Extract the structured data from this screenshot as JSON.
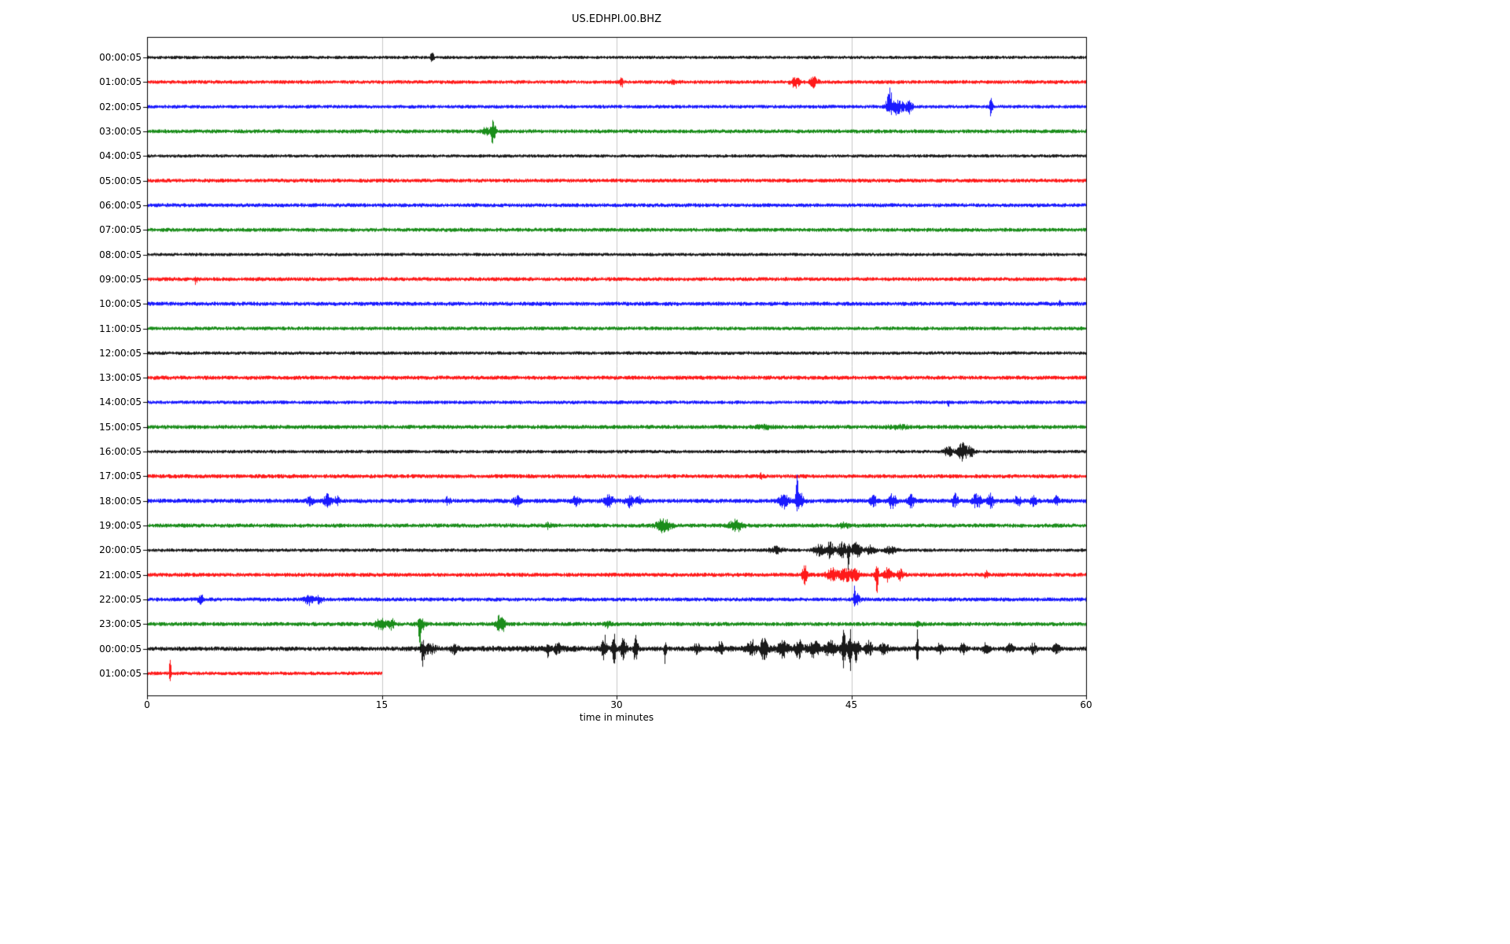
{
  "chart_data": {
    "type": "line",
    "title": "US.EDHPI.00.BHZ",
    "xlabel": "time in minutes",
    "x_ticks": [
      "0",
      "15",
      "30",
      "45",
      "60"
    ],
    "x_range_minutes": [
      0,
      60
    ],
    "grid": "vertical",
    "grid_minutes": [
      15,
      30,
      45
    ],
    "trace_colors_cycle": [
      "#000000",
      "#ff0000",
      "#0000ff",
      "#008000"
    ],
    "rows": [
      {
        "label": "00:00:05",
        "color": "#000000",
        "noise": 2.2,
        "events": [
          {
            "t": 18.2,
            "a": 5,
            "d": 0.12
          }
        ]
      },
      {
        "label": "01:00:05",
        "color": "#ff0000",
        "noise": 2.5,
        "events": [
          {
            "t": 30.3,
            "a": 6,
            "d": 0.1
          },
          {
            "t": 33.6,
            "a": 4,
            "d": 0.1
          },
          {
            "t": 41.4,
            "a": 6,
            "d": 0.3
          },
          {
            "t": 42.6,
            "a": 6,
            "d": 0.25
          }
        ]
      },
      {
        "label": "02:00:05",
        "color": "#0000ff",
        "noise": 2.4,
        "events": [
          {
            "t": 47.4,
            "a": 20,
            "d": 0.18,
            "skew": "up"
          },
          {
            "t": 47.9,
            "a": 9,
            "d": 0.45
          },
          {
            "t": 48.7,
            "a": 8,
            "d": 0.2
          },
          {
            "t": 53.9,
            "a": 13,
            "d": 0.1
          }
        ]
      },
      {
        "label": "03:00:05",
        "color": "#008000",
        "noise": 2.6,
        "events": [
          {
            "t": 21.7,
            "a": 4,
            "d": 0.35
          },
          {
            "t": 22.1,
            "a": 16,
            "d": 0.13
          }
        ]
      },
      {
        "label": "04:00:05",
        "color": "#000000",
        "noise": 2.2,
        "events": []
      },
      {
        "label": "05:00:05",
        "color": "#ff0000",
        "noise": 2.6,
        "events": []
      },
      {
        "label": "06:00:05",
        "color": "#0000ff",
        "noise": 2.6,
        "events": []
      },
      {
        "label": "07:00:05",
        "color": "#008000",
        "noise": 2.6,
        "events": []
      },
      {
        "label": "08:00:05",
        "color": "#000000",
        "noise": 2.2,
        "events": []
      },
      {
        "label": "09:00:05",
        "color": "#ff0000",
        "noise": 2.6,
        "events": [
          {
            "t": 3.1,
            "a": 6,
            "d": 0.07,
            "skew": "down"
          }
        ]
      },
      {
        "label": "10:00:05",
        "color": "#0000ff",
        "noise": 2.7,
        "events": [
          {
            "t": 58.3,
            "a": 3,
            "d": 0.1
          }
        ]
      },
      {
        "label": "11:00:05",
        "color": "#008000",
        "noise": 2.5,
        "events": []
      },
      {
        "label": "12:00:05",
        "color": "#000000",
        "noise": 2.3,
        "events": []
      },
      {
        "label": "13:00:05",
        "color": "#ff0000",
        "noise": 2.7,
        "events": []
      },
      {
        "label": "14:00:05",
        "color": "#0000ff",
        "noise": 2.4,
        "events": [
          {
            "t": 51.2,
            "a": 5,
            "d": 0.07,
            "skew": "down"
          }
        ]
      },
      {
        "label": "15:00:05",
        "color": "#008000",
        "noise": 2.7,
        "events": [
          {
            "t": 39.5,
            "a": 2,
            "d": 0.5
          },
          {
            "t": 48.0,
            "a": 2,
            "d": 0.6
          }
        ]
      },
      {
        "label": "16:00:05",
        "color": "#000000",
        "noise": 2.3,
        "events": [
          {
            "t": 51.2,
            "a": 5,
            "d": 0.3
          },
          {
            "t": 52.1,
            "a": 11,
            "d": 0.28
          },
          {
            "t": 52.6,
            "a": 7,
            "d": 0.2
          }
        ]
      },
      {
        "label": "17:00:05",
        "color": "#ff0000",
        "noise": 2.7,
        "events": [
          {
            "t": 39.2,
            "a": 3,
            "d": 0.1
          }
        ]
      },
      {
        "label": "18:00:05",
        "color": "#0000ff",
        "noise": 2.9,
        "events": [
          {
            "t": 10.4,
            "a": 5,
            "d": 0.2
          },
          {
            "t": 11.5,
            "a": 7,
            "d": 0.25
          },
          {
            "t": 12.1,
            "a": 5,
            "d": 0.15
          },
          {
            "t": 19.2,
            "a": 4,
            "d": 0.15
          },
          {
            "t": 23.6,
            "a": 6,
            "d": 0.2
          },
          {
            "t": 27.4,
            "a": 5,
            "d": 0.25
          },
          {
            "t": 29.5,
            "a": 7,
            "d": 0.3
          },
          {
            "t": 30.8,
            "a": 7,
            "d": 0.25
          },
          {
            "t": 31.4,
            "a": 6,
            "d": 0.15
          },
          {
            "t": 40.7,
            "a": 8,
            "d": 0.3
          },
          {
            "t": 41.5,
            "a": 40,
            "d": 0.07,
            "skew": "up"
          },
          {
            "t": 41.7,
            "a": 9,
            "d": 0.25
          },
          {
            "t": 46.4,
            "a": 7,
            "d": 0.2
          },
          {
            "t": 47.6,
            "a": 9,
            "d": 0.25
          },
          {
            "t": 48.8,
            "a": 8,
            "d": 0.2
          },
          {
            "t": 51.6,
            "a": 8,
            "d": 0.2
          },
          {
            "t": 53.0,
            "a": 9,
            "d": 0.25
          },
          {
            "t": 53.9,
            "a": 8,
            "d": 0.2
          },
          {
            "t": 55.6,
            "a": 6,
            "d": 0.2
          },
          {
            "t": 56.6,
            "a": 6,
            "d": 0.2
          },
          {
            "t": 58.1,
            "a": 5,
            "d": 0.15
          }
        ]
      },
      {
        "label": "19:00:05",
        "color": "#008000",
        "noise": 2.7,
        "events": [
          {
            "t": 25.6,
            "a": 3,
            "d": 0.2
          },
          {
            "t": 33.0,
            "a": 8,
            "d": 0.45
          },
          {
            "t": 37.6,
            "a": 7,
            "d": 0.4
          },
          {
            "t": 44.5,
            "a": 3,
            "d": 0.3
          }
        ]
      },
      {
        "label": "20:00:05",
        "color": "#000000",
        "noise": 2.3,
        "events": [
          {
            "t": 40.2,
            "a": 4,
            "d": 0.4
          },
          {
            "t": 42.9,
            "a": 8,
            "d": 0.3
          },
          {
            "t": 43.6,
            "a": 10,
            "d": 0.25
          },
          {
            "t": 44.4,
            "a": 9,
            "d": 0.3
          },
          {
            "t": 44.8,
            "a": 30,
            "d": 0.07,
            "skew": "down"
          },
          {
            "t": 45.3,
            "a": 9,
            "d": 0.3
          },
          {
            "t": 46.2,
            "a": 5,
            "d": 0.3
          },
          {
            "t": 47.5,
            "a": 4,
            "d": 0.4
          }
        ]
      },
      {
        "label": "21:00:05",
        "color": "#ff0000",
        "noise": 2.7,
        "events": [
          {
            "t": 42.0,
            "a": 12,
            "d": 0.15
          },
          {
            "t": 43.8,
            "a": 7,
            "d": 0.4
          },
          {
            "t": 44.6,
            "a": 8,
            "d": 0.3
          },
          {
            "t": 45.2,
            "a": 7,
            "d": 0.3
          },
          {
            "t": 46.6,
            "a": 26,
            "d": 0.1
          },
          {
            "t": 47.3,
            "a": 10,
            "d": 0.2
          },
          {
            "t": 48.1,
            "a": 6,
            "d": 0.25
          },
          {
            "t": 53.6,
            "a": 5,
            "d": 0.1
          }
        ]
      },
      {
        "label": "22:00:05",
        "color": "#0000ff",
        "noise": 2.6,
        "events": [
          {
            "t": 3.4,
            "a": 6,
            "d": 0.2
          },
          {
            "t": 10.3,
            "a": 6,
            "d": 0.25
          },
          {
            "t": 11.0,
            "a": 5,
            "d": 0.2
          },
          {
            "t": 45.2,
            "a": 22,
            "d": 0.08,
            "skew": "up"
          },
          {
            "t": 45.4,
            "a": 6,
            "d": 0.15
          }
        ]
      },
      {
        "label": "23:00:05",
        "color": "#008000",
        "noise": 2.7,
        "events": [
          {
            "t": 14.9,
            "a": 8,
            "d": 0.3
          },
          {
            "t": 15.6,
            "a": 6,
            "d": 0.2
          },
          {
            "t": 17.4,
            "a": 34,
            "d": 0.08,
            "skew": "down"
          },
          {
            "t": 17.5,
            "a": 8,
            "d": 0.25
          },
          {
            "t": 22.5,
            "a": 10,
            "d": 0.2
          },
          {
            "t": 22.8,
            "a": 7,
            "d": 0.15
          },
          {
            "t": 29.4,
            "a": 4,
            "d": 0.2
          },
          {
            "t": 49.3,
            "a": 3,
            "d": 0.15
          }
        ]
      },
      {
        "label": "00:00:05",
        "color": "#000000",
        "noise": 2.9,
        "events": [
          {
            "t": 42.0,
            "a": 2.5,
            "d": 5.0
          },
          {
            "t": 25.0,
            "a": 1.2,
            "d": 6.0
          },
          {
            "t": 17.6,
            "a": 22,
            "d": 0.1,
            "skew": "down"
          },
          {
            "t": 18.0,
            "a": 6,
            "d": 0.4
          },
          {
            "t": 19.6,
            "a": 5,
            "d": 0.2
          },
          {
            "t": 25.6,
            "a": 14,
            "d": 0.08,
            "skew": "down"
          },
          {
            "t": 26.2,
            "a": 5,
            "d": 0.2
          },
          {
            "t": 29.2,
            "a": 16,
            "d": 0.15
          },
          {
            "t": 29.8,
            "a": 20,
            "d": 0.12
          },
          {
            "t": 30.4,
            "a": 12,
            "d": 0.2
          },
          {
            "t": 31.2,
            "a": 20,
            "d": 0.12
          },
          {
            "t": 33.1,
            "a": 24,
            "d": 0.07,
            "skew": "down"
          },
          {
            "t": 35.1,
            "a": 6,
            "d": 0.2
          },
          {
            "t": 36.6,
            "a": 7,
            "d": 0.2
          },
          {
            "t": 38.6,
            "a": 9,
            "d": 0.25
          },
          {
            "t": 39.4,
            "a": 12,
            "d": 0.2
          },
          {
            "t": 40.6,
            "a": 8,
            "d": 0.25
          },
          {
            "t": 41.6,
            "a": 9,
            "d": 0.2
          },
          {
            "t": 42.6,
            "a": 8,
            "d": 0.25
          },
          {
            "t": 43.6,
            "a": 8,
            "d": 0.3
          },
          {
            "t": 44.5,
            "a": 22,
            "d": 0.15
          },
          {
            "t": 44.9,
            "a": 28,
            "d": 0.1
          },
          {
            "t": 45.3,
            "a": 14,
            "d": 0.15
          },
          {
            "t": 46.1,
            "a": 8,
            "d": 0.2
          },
          {
            "t": 47.1,
            "a": 6,
            "d": 0.25
          },
          {
            "t": 49.2,
            "a": 24,
            "d": 0.07
          },
          {
            "t": 50.6,
            "a": 6,
            "d": 0.2
          },
          {
            "t": 52.1,
            "a": 6,
            "d": 0.2
          },
          {
            "t": 53.6,
            "a": 7,
            "d": 0.2
          },
          {
            "t": 55.1,
            "a": 6,
            "d": 0.2
          },
          {
            "t": 56.6,
            "a": 6,
            "d": 0.2
          },
          {
            "t": 58.1,
            "a": 5,
            "d": 0.2
          }
        ]
      },
      {
        "label": "01:00:05",
        "color": "#ff0000",
        "noise": 2.4,
        "end": 15,
        "events": [
          {
            "t": 1.45,
            "a": 26,
            "d": 0.06,
            "skew": "up"
          }
        ]
      }
    ]
  }
}
